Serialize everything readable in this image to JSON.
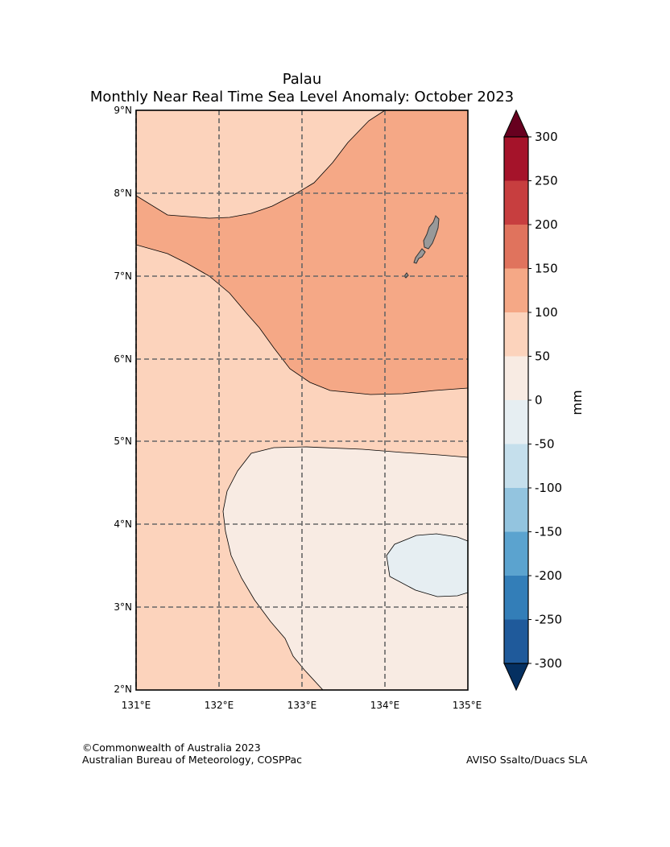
{
  "title": "Palau",
  "subtitle": "Monthly Near Real Time Sea Level Anomaly: October 2023",
  "credit": {
    "line1": "©Commonwealth of Australia 2023",
    "line2": "Australian Bureau of Meteorology, COSPPac",
    "source": "AVISO Ssalto/Duacs SLA"
  },
  "map": {
    "lon_range": [
      131,
      135
    ],
    "lat_range": [
      2,
      9
    ],
    "x_ticks": [
      "131°E",
      "132°E",
      "133°E",
      "134°E",
      "135°E"
    ],
    "y_ticks": [
      "9°N",
      "8°N",
      "7°N",
      "6°N",
      "5°N",
      "4°N",
      "3°N",
      "2°N"
    ],
    "regions": [
      {
        "name": "50 to 100 mm anomaly",
        "color": "#fcd3bc"
      },
      {
        "name": "100 to 150 mm anomaly",
        "color": "#f5a886"
      },
      {
        "name": "0 to 50 mm anomaly",
        "color": "#f8ebe3"
      },
      {
        "name": "-50 to 0 mm anomaly",
        "color": "#e6eef2"
      }
    ],
    "land": {
      "name": "Palau islands",
      "color": "#999999"
    }
  },
  "colorbar": {
    "label": "mm",
    "tick_labels": [
      "300",
      "250",
      "200",
      "150",
      "100",
      "50",
      "0",
      "-50",
      "-100",
      "-150",
      "-200",
      "-250",
      "-300"
    ],
    "colors": [
      "#a5132a",
      "#c73e3f",
      "#e0735d",
      "#f5a886",
      "#fcd3bc",
      "#f8ebe3",
      "#e6eef2",
      "#c5dfec",
      "#93c4df",
      "#5ba3cf",
      "#337eb8",
      "#1f5a9b"
    ],
    "extend_max_color": "#67001f",
    "extend_min_color": "#053061"
  }
}
